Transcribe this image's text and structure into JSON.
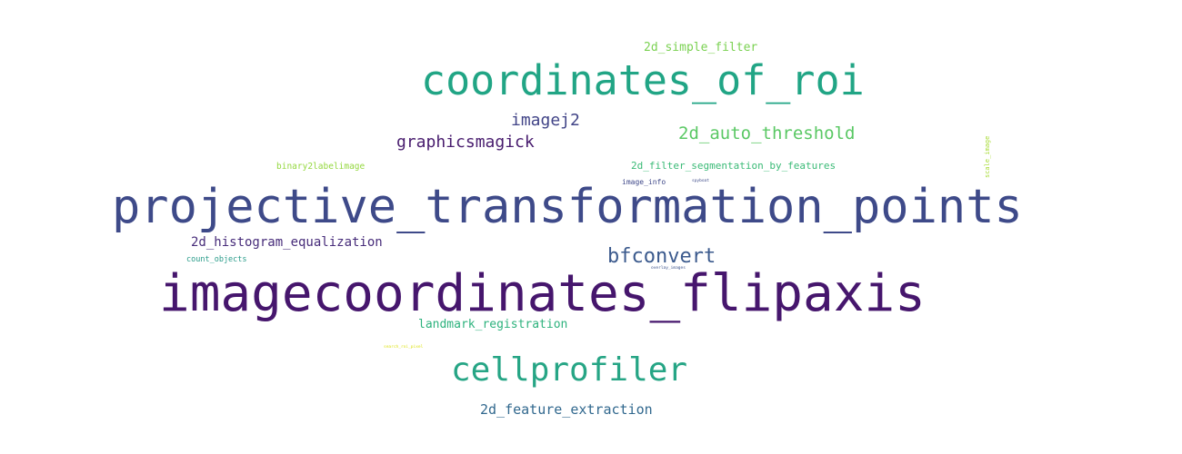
{
  "words": [
    {
      "text": "projective_transformation_points",
      "color": "#3e4a89"
    },
    {
      "text": "imagecoordinates_flipaxis",
      "color": "#46166d"
    },
    {
      "text": "coordinates_of_roi",
      "color": "#21a585"
    },
    {
      "text": "cellprofiler",
      "color": "#26a585"
    },
    {
      "text": "bfconvert",
      "color": "#3b5a8d"
    },
    {
      "text": "graphicsmagick",
      "color": "#481c6e"
    },
    {
      "text": "imagej2",
      "color": "#414487"
    },
    {
      "text": "2d_auto_threshold",
      "color": "#5ac864"
    },
    {
      "text": "2d_histogram_equalization",
      "color": "#472c7a"
    },
    {
      "text": "2d_feature_extraction",
      "color": "#31688e"
    },
    {
      "text": "landmark_registration",
      "color": "#2db27d"
    },
    {
      "text": "2d_simple_filter",
      "color": "#7ad151"
    },
    {
      "text": "2d_filter_segmentation_by_features",
      "color": "#3aba76"
    },
    {
      "text": "binary2labelimage",
      "color": "#95d840"
    },
    {
      "text": "count_objects",
      "color": "#2a9c8a"
    },
    {
      "text": "image_info",
      "color": "#3f4889"
    },
    {
      "text": "scale_image",
      "color": "#a7db35"
    },
    {
      "text": "spyboat",
      "color": "#3f4c8a"
    },
    {
      "text": "overlay_images",
      "color": "#3b528b"
    },
    {
      "text": "search_roi_pixel",
      "color": "#dde318"
    }
  ]
}
